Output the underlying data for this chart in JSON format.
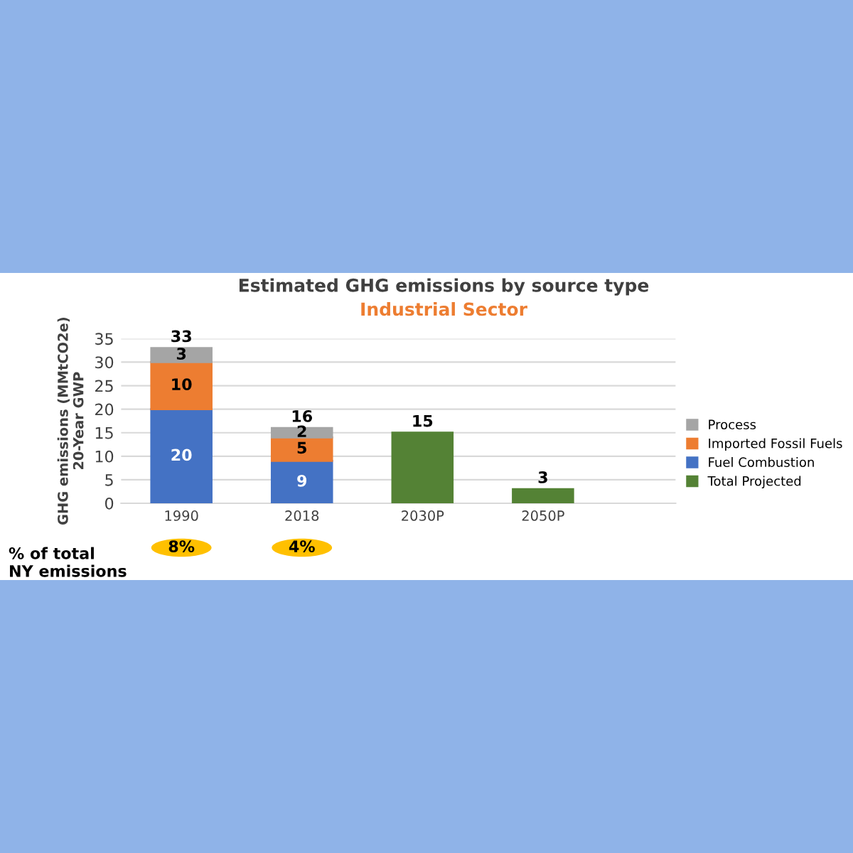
{
  "chart_data": {
    "type": "bar",
    "title": "Estimated GHG emissions by source type",
    "subtitle": "Industrial Sector",
    "ylabel": "GHG emissions (MMtCO2e)\n20-Year GWP",
    "categories": [
      "1990",
      "2018",
      "2030P",
      "2050P"
    ],
    "stacked": true,
    "series": [
      {
        "name": "Fuel Combustion",
        "color": "#4472c4",
        "values": [
          20,
          9,
          null,
          null
        ]
      },
      {
        "name": "Imported Fossil Fuels",
        "color": "#ed7d31",
        "values": [
          10,
          5,
          null,
          null
        ]
      },
      {
        "name": "Process",
        "color": "#a5a5a5",
        "values": [
          3,
          2,
          null,
          null
        ]
      },
      {
        "name": "Total Projected",
        "color": "#548235",
        "values": [
          null,
          null,
          15,
          3
        ]
      }
    ],
    "totals": [
      "33",
      "16",
      null,
      null
    ],
    "data_labels": true,
    "ylim": [
      0,
      35
    ],
    "yticks": [
      0,
      5,
      10,
      15,
      20,
      25,
      30,
      35
    ],
    "grid": "y",
    "legend": "right",
    "annotations": [
      "% of total\nNY emissions",
      "8%",
      "4%"
    ]
  }
}
